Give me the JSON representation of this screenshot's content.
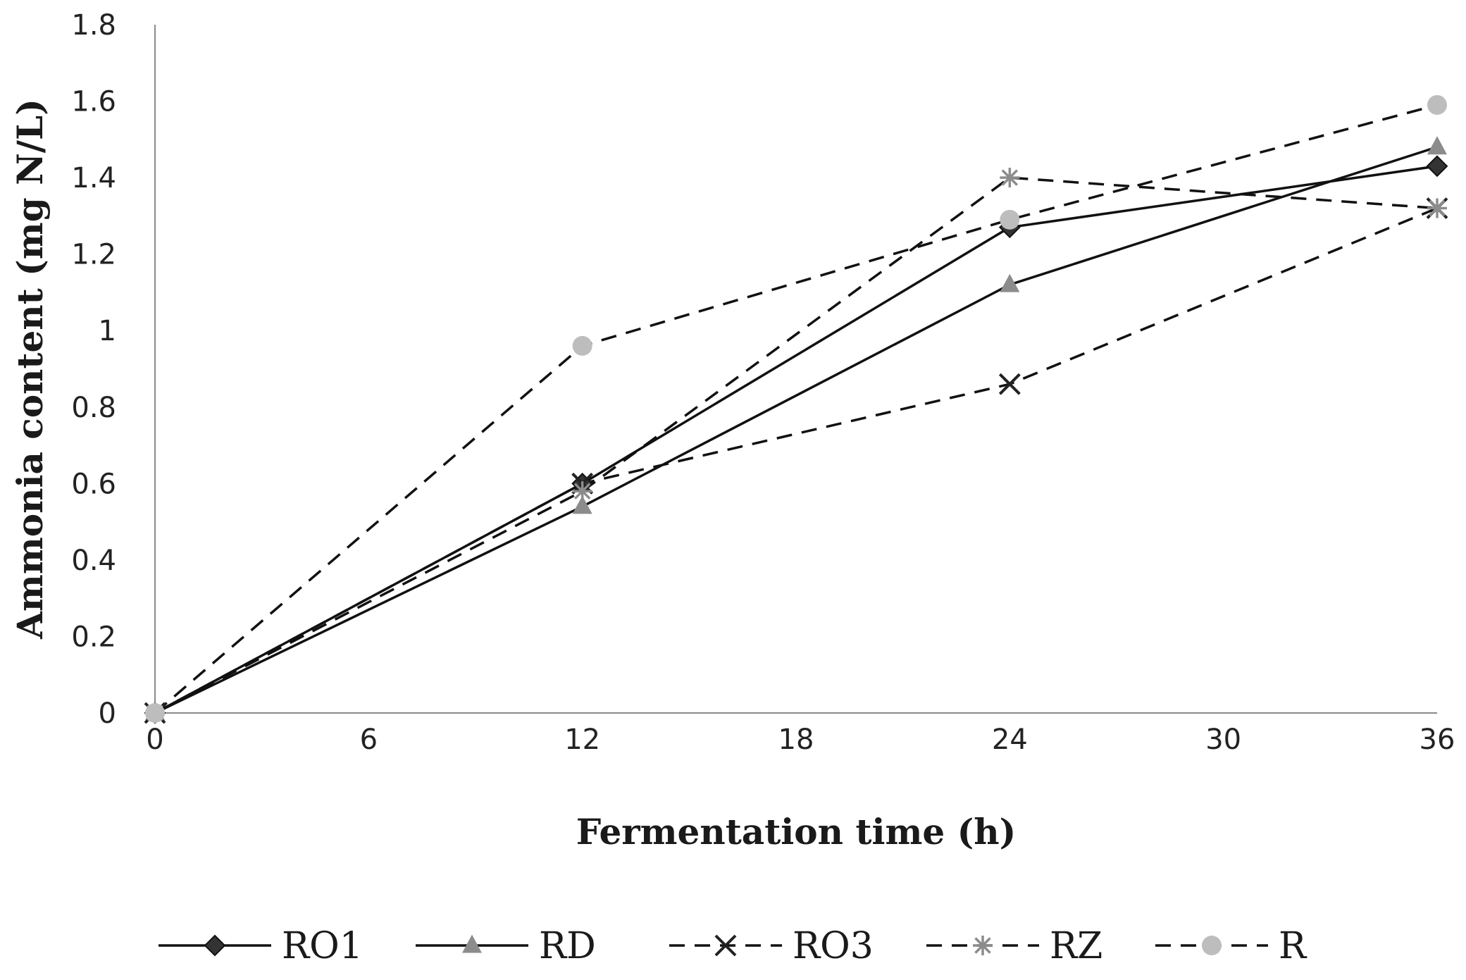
{
  "chart_data": {
    "type": "line",
    "title": "",
    "xlabel": "Fermentation time (h)",
    "ylabel": "Ammonia content (mg N/L)",
    "x": [
      0,
      12,
      24,
      36
    ],
    "xticks": [
      0,
      6,
      12,
      18,
      24,
      30,
      36
    ],
    "xtick_labels": [
      "0",
      "6",
      "12",
      "18",
      "24",
      "30",
      "36"
    ],
    "yticks": [
      0,
      0.2,
      0.4,
      0.6,
      0.8,
      1,
      1.2,
      1.4,
      1.6,
      1.8
    ],
    "ytick_labels": [
      "0",
      "0.2",
      "0.4",
      "0.6",
      "0.8",
      "1",
      "1.2",
      "1.4",
      "1.6",
      "1.8"
    ],
    "xlim": [
      0,
      36
    ],
    "ylim": [
      0,
      1.8
    ],
    "grid": false,
    "legend_position": "bottom",
    "series": [
      {
        "name": "RO1",
        "values": [
          0,
          0.6,
          1.27,
          1.43
        ],
        "line": "solid",
        "marker": "diamond",
        "color": "#333333"
      },
      {
        "name": "RD",
        "values": [
          0,
          0.54,
          1.12,
          1.48
        ],
        "line": "solid",
        "marker": "triangle",
        "color": "#8c8c8c"
      },
      {
        "name": "RO3",
        "values": [
          0,
          0.6,
          0.86,
          1.32
        ],
        "line": "dashed",
        "marker": "x",
        "color": "#222222"
      },
      {
        "name": "RZ",
        "values": [
          0,
          0.58,
          1.4,
          1.32
        ],
        "line": "dashed",
        "marker": "star",
        "color": "#8c8c8c"
      },
      {
        "name": "R",
        "values": [
          0,
          0.96,
          1.29,
          1.59
        ],
        "line": "dashed",
        "marker": "circle",
        "color": "#bdbdbd"
      }
    ]
  }
}
